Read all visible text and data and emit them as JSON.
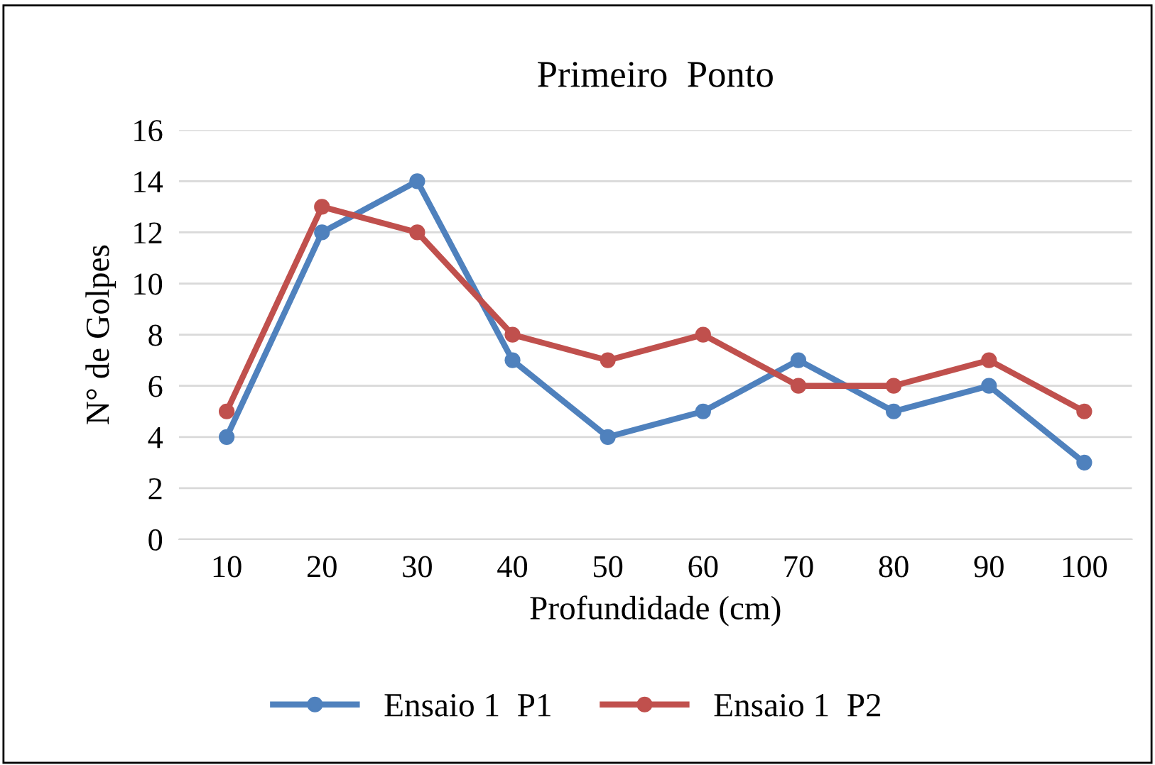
{
  "chart_data": {
    "type": "line",
    "title": "Primeiro  Ponto",
    "xlabel": "Profundidade (cm)",
    "ylabel": "N° de Golpes",
    "categories": [
      "10",
      "20",
      "30",
      "40",
      "50",
      "60",
      "70",
      "80",
      "90",
      "100"
    ],
    "series": [
      {
        "name": "Ensaio 1  P1",
        "color": "#4f81bd",
        "values": [
          4,
          12,
          14,
          7,
          4,
          5,
          7,
          5,
          6,
          3
        ]
      },
      {
        "name": "Ensaio 1  P2",
        "color": "#c0504d",
        "values": [
          5,
          13,
          12,
          8,
          7,
          8,
          6,
          6,
          7,
          5
        ]
      }
    ],
    "ylim": [
      0,
      16
    ],
    "yticks": [
      0,
      2,
      4,
      6,
      8,
      10,
      12,
      14,
      16
    ],
    "grid": "y",
    "legend": "bottom",
    "marker": "circle",
    "line_style": "solid"
  }
}
